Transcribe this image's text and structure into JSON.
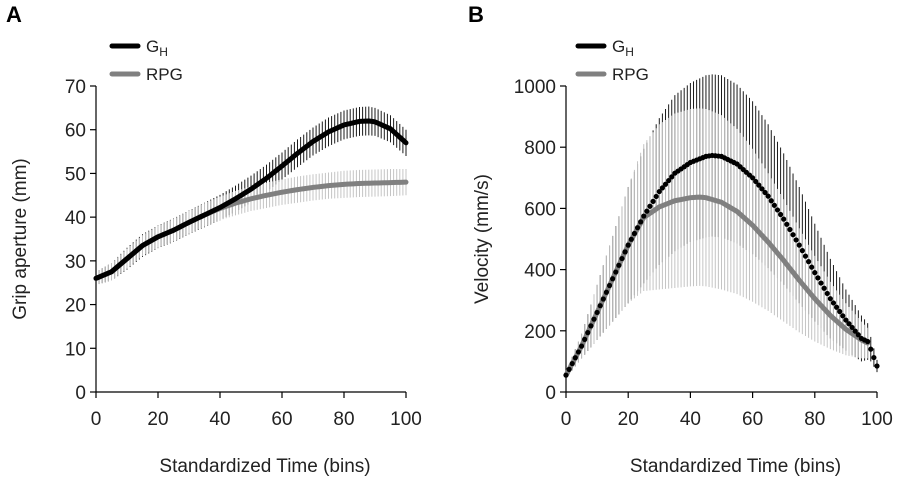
{
  "chart_data": [
    {
      "panel_label": "A",
      "type": "line",
      "xlabel": "Standardized Time (bins)",
      "ylabel": "Grip aperture (mm)",
      "xlim": [
        0,
        100
      ],
      "ylim": [
        0,
        70
      ],
      "xticks": [
        0,
        20,
        40,
        60,
        80,
        100
      ],
      "yticks": [
        0,
        10,
        20,
        30,
        40,
        50,
        60,
        70
      ],
      "legend_position": "top-left",
      "series": [
        {
          "name": "G",
          "name_sub": "H",
          "color": "#000000",
          "x": [
            0,
            5,
            10,
            15,
            20,
            25,
            30,
            35,
            40,
            45,
            50,
            55,
            60,
            65,
            70,
            75,
            80,
            85,
            88,
            90,
            95,
            100
          ],
          "values": [
            26,
            27.5,
            30.5,
            33.5,
            35.5,
            37,
            38.8,
            40.5,
            42.2,
            44.2,
            46.4,
            48.9,
            51.7,
            54.6,
            57.3,
            59.5,
            61.1,
            61.9,
            62,
            61.8,
            60.2,
            57
          ],
          "error": [
            1.5,
            2,
            2.5,
            2.6,
            2.6,
            2.7,
            2.7,
            2.8,
            2.9,
            3,
            3.1,
            3.1,
            3.1,
            3.2,
            3.2,
            3.3,
            3.3,
            3.3,
            3.3,
            3.2,
            3.1,
            3
          ]
        },
        {
          "name": "RPG",
          "color": "#808080",
          "x": [
            0,
            5,
            10,
            15,
            20,
            25,
            30,
            35,
            40,
            45,
            50,
            55,
            60,
            65,
            70,
            75,
            80,
            85,
            90,
            95,
            100
          ],
          "values": [
            26,
            27.5,
            30.5,
            33.5,
            35.5,
            37,
            38.8,
            40.5,
            42,
            43.2,
            44.2,
            45,
            45.7,
            46.3,
            46.8,
            47.2,
            47.5,
            47.7,
            47.8,
            47.9,
            48
          ],
          "error": [
            1.5,
            2,
            2.3,
            2.4,
            2.5,
            2.6,
            2.6,
            2.7,
            2.7,
            2.8,
            2.8,
            2.9,
            2.9,
            3,
            3,
            3,
            3.1,
            3.1,
            3.1,
            3.1,
            3
          ]
        }
      ]
    },
    {
      "panel_label": "B",
      "type": "line",
      "xlabel": "Standardized Time (bins)",
      "ylabel": "Velocity (mm/s)",
      "xlim": [
        0,
        100
      ],
      "ylim": [
        0,
        1000
      ],
      "xticks": [
        0,
        20,
        40,
        60,
        80,
        100
      ],
      "yticks": [
        0,
        200,
        400,
        600,
        800,
        1000
      ],
      "legend_position": "top-left",
      "series": [
        {
          "name": "G",
          "name_sub": "H",
          "color": "#000000",
          "x": [
            0,
            5,
            10,
            15,
            20,
            25,
            30,
            35,
            40,
            45,
            47,
            50,
            55,
            60,
            65,
            70,
            75,
            80,
            85,
            90,
            95,
            97,
            98,
            100
          ],
          "values": [
            55,
            150,
            260,
            370,
            480,
            575,
            655,
            715,
            750,
            770,
            773,
            770,
            745,
            700,
            640,
            565,
            480,
            390,
            305,
            235,
            175,
            165,
            140,
            85
          ],
          "error": [
            10,
            40,
            90,
            140,
            190,
            220,
            240,
            255,
            260,
            265,
            265,
            265,
            260,
            250,
            235,
            215,
            190,
            160,
            130,
            100,
            75,
            60,
            40,
            20
          ]
        },
        {
          "name": "RPG",
          "color": "#808080",
          "x": [
            0,
            5,
            10,
            15,
            20,
            25,
            30,
            35,
            40,
            43,
            45,
            50,
            55,
            60,
            65,
            70,
            75,
            80,
            85,
            90,
            95,
            97
          ],
          "values": [
            55,
            150,
            260,
            370,
            480,
            570,
            605,
            625,
            635,
            637,
            635,
            620,
            590,
            545,
            490,
            430,
            365,
            305,
            250,
            205,
            170,
            160
          ],
          "error": [
            10,
            40,
            90,
            140,
            190,
            240,
            270,
            285,
            290,
            290,
            290,
            285,
            270,
            250,
            225,
            200,
            170,
            140,
            110,
            85,
            60,
            50
          ]
        }
      ]
    }
  ]
}
